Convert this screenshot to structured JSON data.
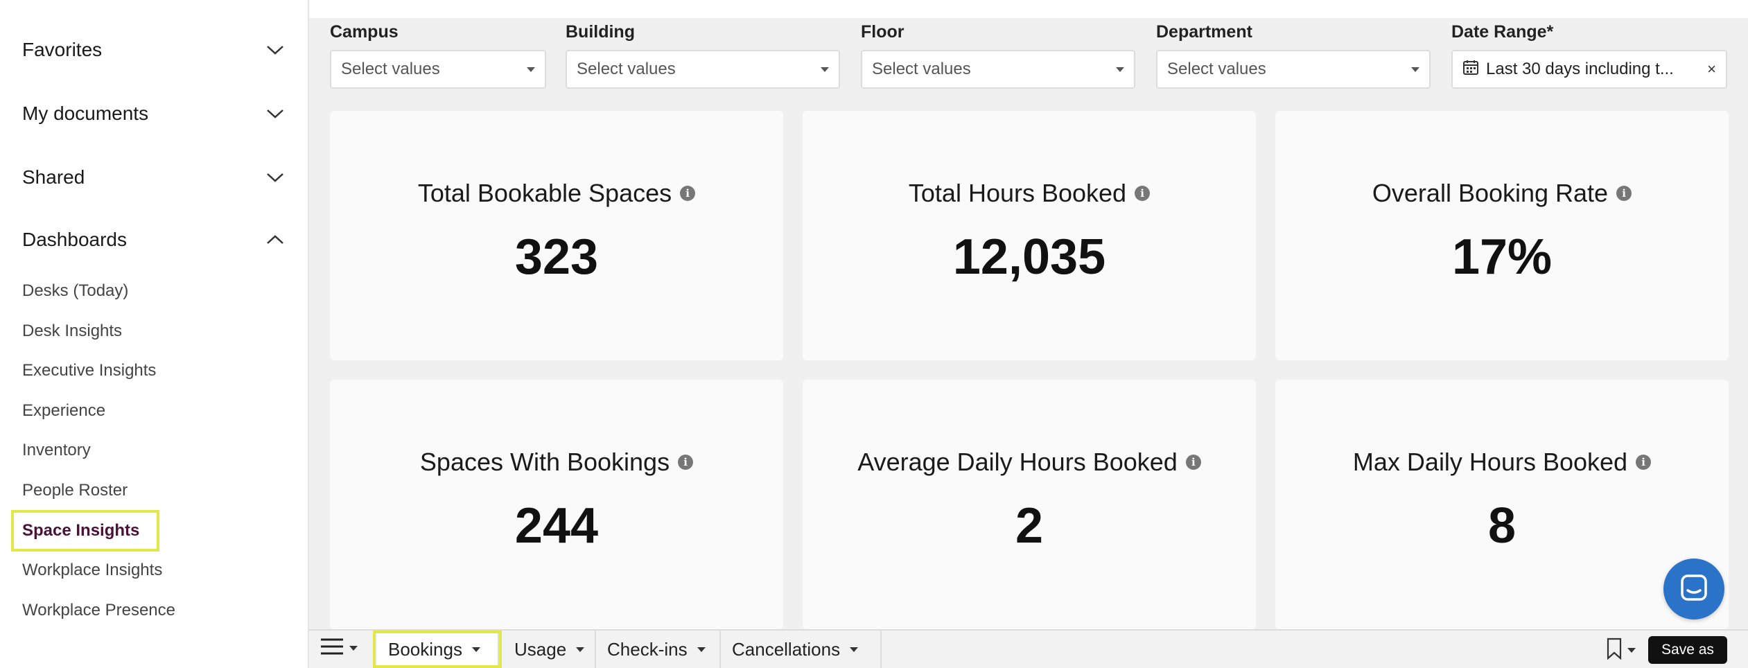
{
  "sidebar": {
    "sections": {
      "favorites": "Favorites",
      "my_documents": "My documents",
      "shared": "Shared",
      "dashboards": "Dashboards"
    },
    "dashboards": [
      "Desks (Today)",
      "Desk Insights",
      "Executive Insights",
      "Experience",
      "Inventory",
      "People Roster",
      "Space Insights",
      "Workplace Insights",
      "Workplace Presence"
    ],
    "active_item": "Space Insights"
  },
  "filters": {
    "campus": {
      "label": "Campus",
      "placeholder": "Select values"
    },
    "building": {
      "label": "Building",
      "placeholder": "Select values"
    },
    "floor": {
      "label": "Floor",
      "placeholder": "Select values"
    },
    "department": {
      "label": "Department",
      "placeholder": "Select values"
    },
    "date_range": {
      "label": "Date Range*",
      "value": "Last 30 days including t...",
      "clear": "×"
    }
  },
  "cards": [
    {
      "title": "Total Bookable Spaces",
      "value": "323"
    },
    {
      "title": "Total Hours Booked",
      "value": "12,035"
    },
    {
      "title": "Overall Booking Rate",
      "value": "17%"
    },
    {
      "title": "Spaces With Bookings",
      "value": "244"
    },
    {
      "title": "Average Daily Hours Booked",
      "value": "2"
    },
    {
      "title": "Max Daily Hours Booked",
      "value": "8"
    }
  ],
  "info_glyph": "i",
  "tabs": [
    {
      "label": "Bookings",
      "active": true
    },
    {
      "label": "Usage",
      "active": false
    },
    {
      "label": "Check-ins",
      "active": false
    },
    {
      "label": "Cancellations",
      "active": false
    }
  ],
  "toolbar": {
    "save_as": "Save as"
  },
  "colors": {
    "accent_highlight": "#e2e84a",
    "active_item": "#4a1238",
    "chat_button": "#2b73c9"
  }
}
